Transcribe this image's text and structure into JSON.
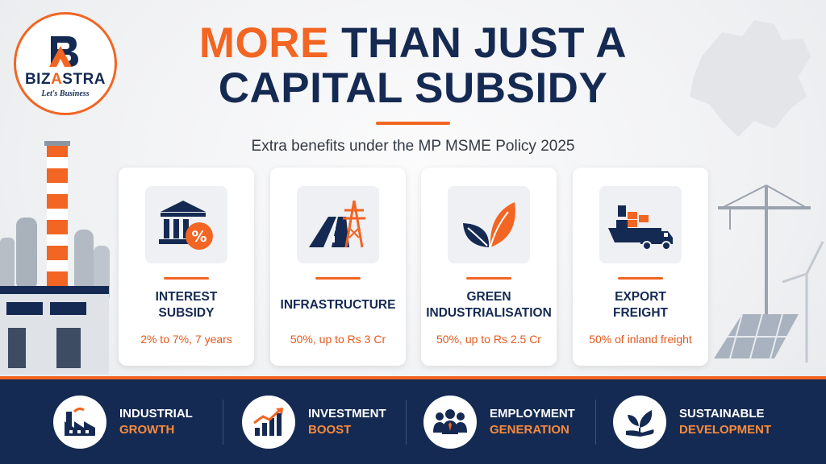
{
  "brand": {
    "name_part1": "BIZ",
    "name_part2": "A",
    "name_part3": "STRA",
    "tagline": "Let's Business",
    "colors": {
      "navy": "#152a52",
      "orange": "#f26522"
    }
  },
  "header": {
    "title_highlight": "MORE",
    "title_rest_line1": "THAN JUST A",
    "title_line2": "CAPITAL SUBSIDY",
    "subtitle": "Extra benefits under the MP MSME Policy 2025"
  },
  "cards": [
    {
      "icon": "bank-percent-icon",
      "title_line1": "INTEREST",
      "title_line2": "SUBSIDY",
      "desc": "2% to 7%, 7 years"
    },
    {
      "icon": "road-tower-icon",
      "title_line1": "INFRASTRUCTURE",
      "title_line2": "",
      "desc": "50%, up to Rs 3 Cr"
    },
    {
      "icon": "leaf-icon",
      "title_line1": "GREEN",
      "title_line2": "INDUSTRIALISATION",
      "desc": "50%, up to Rs 2.5 Cr"
    },
    {
      "icon": "ship-truck-icon",
      "title_line1": "EXPORT",
      "title_line2": "FREIGHT",
      "desc": "50% of inland freight"
    }
  ],
  "footer": [
    {
      "icon": "factory-icon",
      "line1": "INDUSTRIAL",
      "line2": "GROWTH"
    },
    {
      "icon": "growth-chart-icon",
      "line1": "INVESTMENT",
      "line2": "BOOST"
    },
    {
      "icon": "people-icon",
      "line1": "EMPLOYMENT",
      "line2": "GENERATION"
    },
    {
      "icon": "plant-hand-icon",
      "line1": "SUSTAINABLE",
      "line2": "DEVELOPMENT"
    }
  ]
}
